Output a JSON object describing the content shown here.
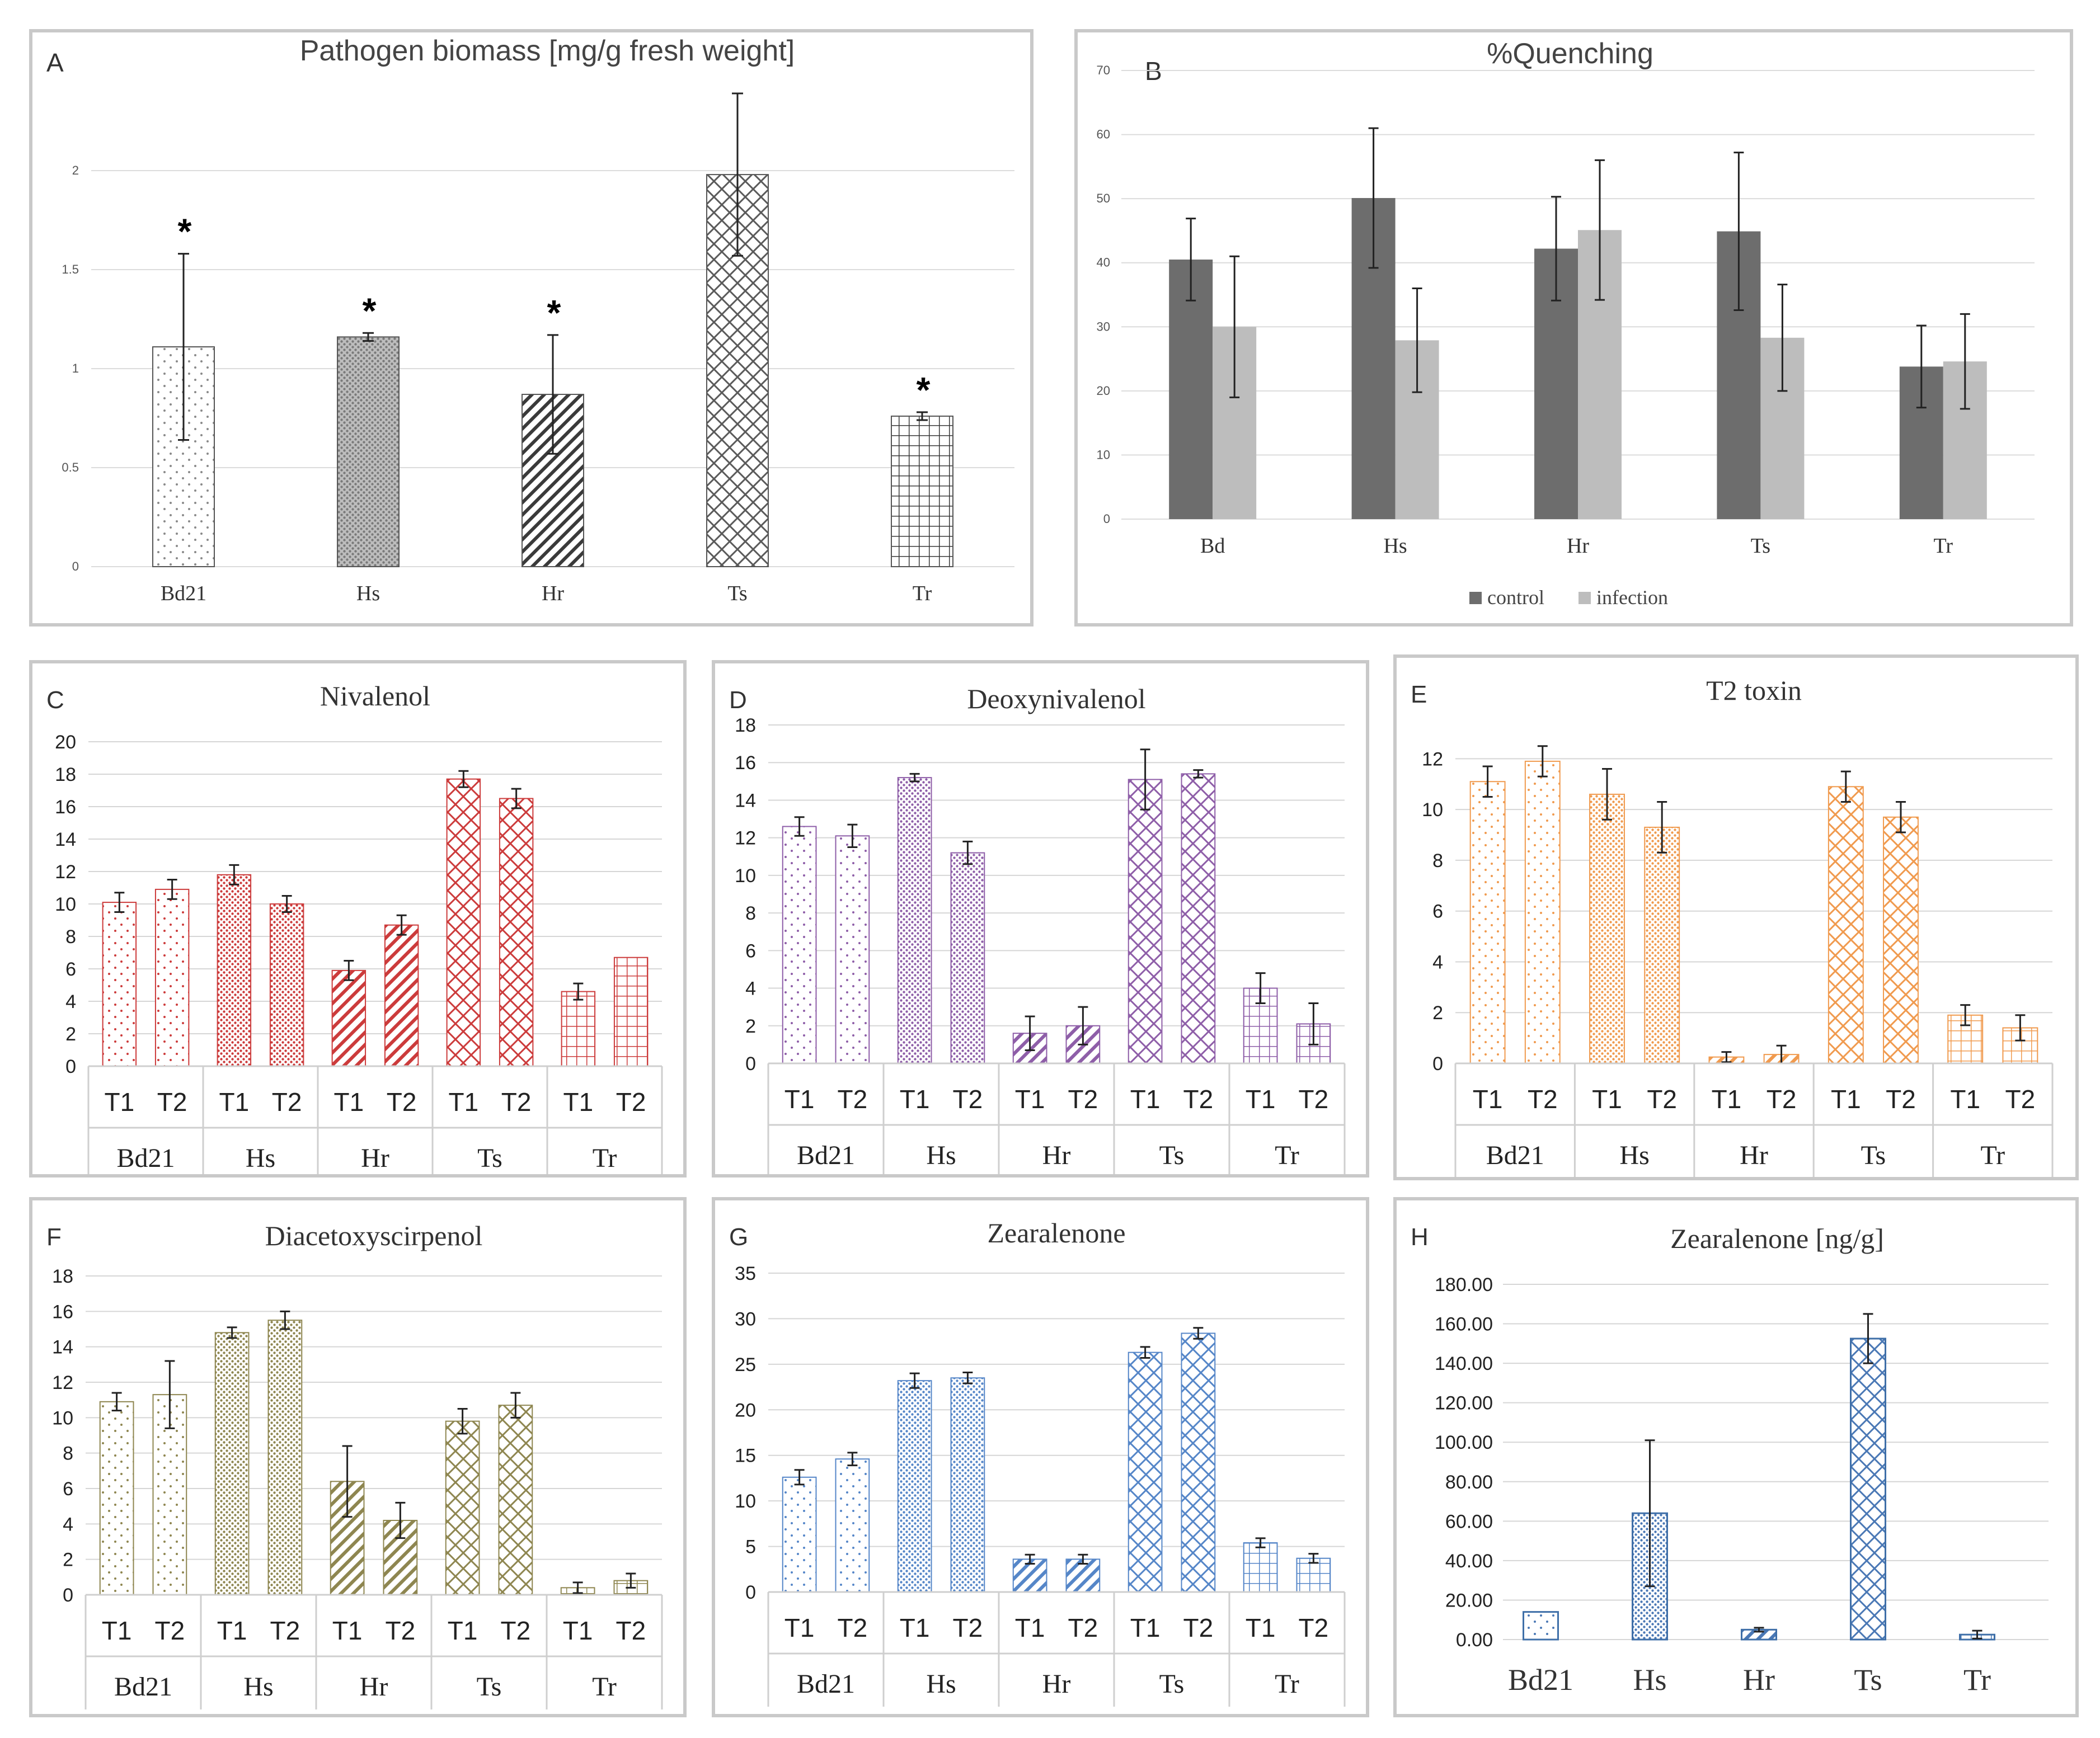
{
  "chart_data": [
    {
      "panel": "A",
      "type": "bar",
      "title": "Pathogen  biomass [mg/g fresh weight]",
      "categories": [
        "Bd21",
        "Hs",
        "Hr",
        "Ts",
        "Tr"
      ],
      "values": [
        1.11,
        1.16,
        0.87,
        1.98,
        0.76
      ],
      "errors": [
        0.47,
        0.02,
        0.3,
        0.41,
        0.02
      ],
      "significance": [
        "*",
        "*",
        "*",
        "",
        "*"
      ],
      "yticks": [
        "0",
        "0.5",
        "1",
        "1.5",
        "2"
      ],
      "ylim": [
        0,
        2.5
      ],
      "grid": true,
      "patterns": [
        "dots",
        "dense",
        "diag",
        "cross",
        "grid"
      ],
      "colors": [
        "#8a8a8a",
        "#7a7a7a",
        "#3a3a3a",
        "#5a5a5a",
        "#3a3a3a"
      ],
      "fills": [
        "#ffffff",
        "#bdbdbd",
        "#ffffff",
        "#ffffff",
        "#ffffff"
      ]
    },
    {
      "panel": "B",
      "type": "bar",
      "title": "%Quenching",
      "categories": [
        "Bd",
        "Hs",
        "Hr",
        "Ts",
        "Tr"
      ],
      "series": [
        {
          "name": "control",
          "values": [
            40.5,
            50.1,
            42.2,
            44.9,
            23.8
          ],
          "errors": [
            6.4,
            10.9,
            8.1,
            12.3,
            6.4
          ],
          "color": "#6d6d6d"
        },
        {
          "name": "infection",
          "values": [
            30.0,
            27.9,
            45.1,
            28.3,
            24.6
          ],
          "errors": [
            11.0,
            8.1,
            10.9,
            8.3,
            7.4
          ],
          "color": "#bdbdbd"
        }
      ],
      "yticks": [
        "0",
        "10",
        "20",
        "30",
        "40",
        "50",
        "60",
        "70"
      ],
      "ylim": [
        0,
        70
      ],
      "legend": "bottom",
      "grid": true
    },
    {
      "panel": "C",
      "type": "bar",
      "title": "Nivalenol",
      "color": "#cc3b3b",
      "groups": [
        "Bd21",
        "Hs",
        "Hr",
        "Ts",
        "Tr"
      ],
      "subcategories": [
        "T1",
        "T2"
      ],
      "values": [
        10.1,
        10.9,
        11.8,
        10.0,
        5.9,
        8.7,
        17.7,
        16.5,
        4.6,
        6.7
      ],
      "errors": [
        0.6,
        0.6,
        0.6,
        0.5,
        0.6,
        0.6,
        0.5,
        0.6,
        0.5,
        0
      ],
      "yticks": [
        "0",
        "2",
        "4",
        "6",
        "8",
        "10",
        "12",
        "14",
        "16",
        "18",
        "20"
      ],
      "ylim": [
        0,
        20
      ],
      "grid": true
    },
    {
      "panel": "D",
      "type": "bar",
      "title": "Deoxynivalenol",
      "color": "#8e5ea8",
      "groups": [
        "Bd21",
        "Hs",
        "Hr",
        "Ts",
        "Tr"
      ],
      "subcategories": [
        "T1",
        "T2"
      ],
      "values": [
        12.6,
        12.1,
        15.2,
        11.2,
        1.6,
        2.0,
        15.1,
        15.4,
        4.0,
        2.1
      ],
      "errors": [
        0.5,
        0.6,
        0.2,
        0.6,
        0.9,
        1.0,
        1.6,
        0.2,
        0.8,
        1.1
      ],
      "yticks": [
        "0",
        "2",
        "4",
        "6",
        "8",
        "10",
        "12",
        "14",
        "16",
        "18"
      ],
      "ylim": [
        0,
        18
      ],
      "grid": true
    },
    {
      "panel": "E",
      "type": "bar",
      "title": "T2 toxin",
      "color": "#f09a4e",
      "groups": [
        "Bd21",
        "Hs",
        "Hr",
        "Ts",
        "Tr"
      ],
      "subcategories": [
        "T1",
        "T2"
      ],
      "values": [
        11.1,
        11.9,
        10.6,
        9.3,
        0.25,
        0.35,
        10.9,
        9.7,
        1.9,
        1.4
      ],
      "errors": [
        0.6,
        0.6,
        1.0,
        1.0,
        0.2,
        0.35,
        0.6,
        0.6,
        0.4,
        0.5
      ],
      "yticks": [
        "0",
        "2",
        "4",
        "6",
        "8",
        "10",
        "12"
      ],
      "ylim": [
        0,
        13
      ],
      "grid": true
    },
    {
      "panel": "F",
      "type": "bar",
      "title": "Diacetoxyscirpenol",
      "color": "#8e8650",
      "groups": [
        "Bd21",
        "Hs",
        "Hr",
        "Ts",
        "Tr"
      ],
      "subcategories": [
        "T1",
        "T2"
      ],
      "values": [
        10.9,
        11.3,
        14.8,
        15.5,
        6.4,
        4.2,
        9.8,
        10.7,
        0.4,
        0.8
      ],
      "errors": [
        0.5,
        1.9,
        0.3,
        0.5,
        2.0,
        1.0,
        0.7,
        0.7,
        0.3,
        0.4
      ],
      "yticks": [
        "0",
        "2",
        "4",
        "6",
        "8",
        "10",
        "12",
        "14",
        "16",
        "18"
      ],
      "ylim": [
        0,
        18
      ],
      "grid": true
    },
    {
      "panel": "G",
      "type": "bar",
      "title": "Zearalenone",
      "color": "#5586c8",
      "groups": [
        "Bd21",
        "Hs",
        "Hr",
        "Ts",
        "Tr"
      ],
      "subcategories": [
        "T1",
        "T2"
      ],
      "values": [
        12.6,
        14.6,
        23.2,
        23.5,
        3.6,
        3.6,
        26.3,
        28.4,
        5.4,
        3.7
      ],
      "errors": [
        0.8,
        0.7,
        0.8,
        0.6,
        0.5,
        0.5,
        0.6,
        0.6,
        0.5,
        0.5
      ],
      "yticks": [
        "0",
        "5",
        "10",
        "15",
        "20",
        "25",
        "30",
        "35"
      ],
      "ylim": [
        0,
        35
      ],
      "grid": true
    },
    {
      "panel": "H",
      "type": "bar",
      "title": "Zearalenone  [ng/g]",
      "color": "#3f6fa8",
      "categories": [
        "Bd21",
        "Hs",
        "Hr",
        "Ts",
        "Tr"
      ],
      "values": [
        14.0,
        64.0,
        5.0,
        152.5,
        2.5
      ],
      "errors": [
        0,
        37.0,
        1.0,
        12.5,
        2.0
      ],
      "yticks": [
        "0.00",
        "20.00",
        "40.00",
        "60.00",
        "80.00",
        "100.00",
        "120.00",
        "140.00",
        "160.00",
        "180.00"
      ],
      "ylim": [
        0,
        180
      ],
      "grid": true
    }
  ]
}
